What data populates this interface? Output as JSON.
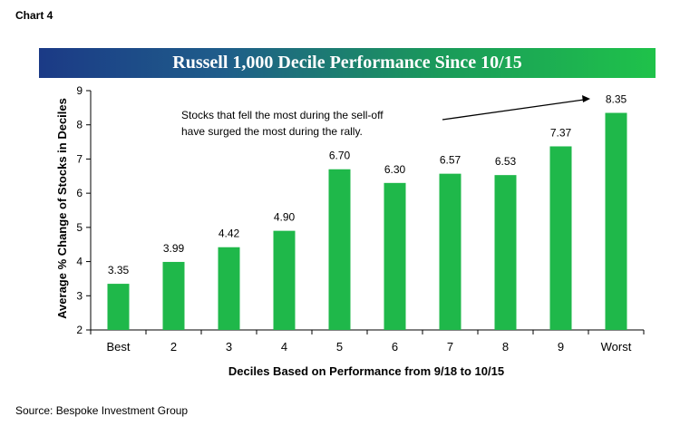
{
  "header": {
    "chart_label": "Chart 4"
  },
  "footer": {
    "source": "Source: Bespoke Investment Group"
  },
  "chart_data": {
    "type": "bar",
    "title": "Russell 1,000 Decile Performance Since 10/15",
    "xlabel": "Deciles Based on Performance from 9/18 to 10/15",
    "ylabel": "Average % Change of Stocks in Deciles",
    "categories": [
      "Best",
      "2",
      "3",
      "4",
      "5",
      "6",
      "7",
      "8",
      "9",
      "Worst"
    ],
    "values": [
      3.35,
      3.99,
      4.42,
      4.9,
      6.7,
      6.3,
      6.57,
      6.53,
      7.37,
      8.35
    ],
    "data_labels": [
      "3.35",
      "3.99",
      "4.42",
      "4.90",
      "6.70",
      "6.30",
      "6.57",
      "6.53",
      "7.37",
      "8.35"
    ],
    "ylim": [
      2,
      9
    ],
    "yticks": [
      2,
      3,
      4,
      5,
      6,
      7,
      8,
      9
    ],
    "grid": false,
    "bar_color": "#1fb84a",
    "annotation": {
      "lines": [
        "Stocks that fell the most during the sell-off",
        "have surged the most during the rally."
      ]
    }
  }
}
